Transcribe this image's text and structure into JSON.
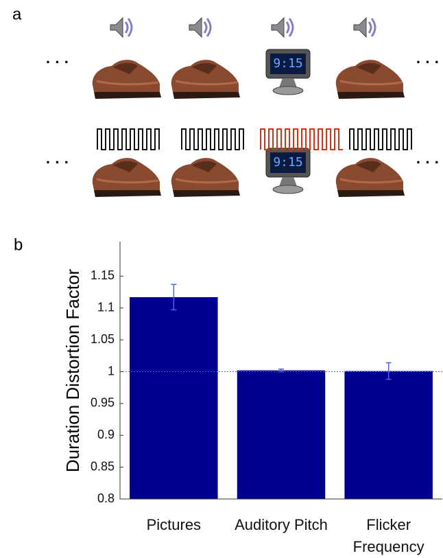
{
  "panel_a": {
    "label": "a",
    "ellipsis": "· · ·",
    "clock_text": "9:15"
  },
  "chart_data": {
    "type": "bar",
    "panel_label": "b",
    "y_label": "Duration Distortion Factor",
    "categories": [
      "Pictures",
      "Auditory Pitch",
      "Flicker Frequency"
    ],
    "values": [
      1.117,
      1.002,
      1.001
    ],
    "errors": [
      0.02,
      0.002,
      0.013
    ],
    "color": "#000090",
    "error_color": "#5060f0",
    "ylim": [
      0.8,
      1.2
    ],
    "yticks": [
      0.8,
      0.85,
      0.9,
      0.95,
      1,
      1.05,
      1.1,
      1.15
    ],
    "reference_line": 1
  }
}
